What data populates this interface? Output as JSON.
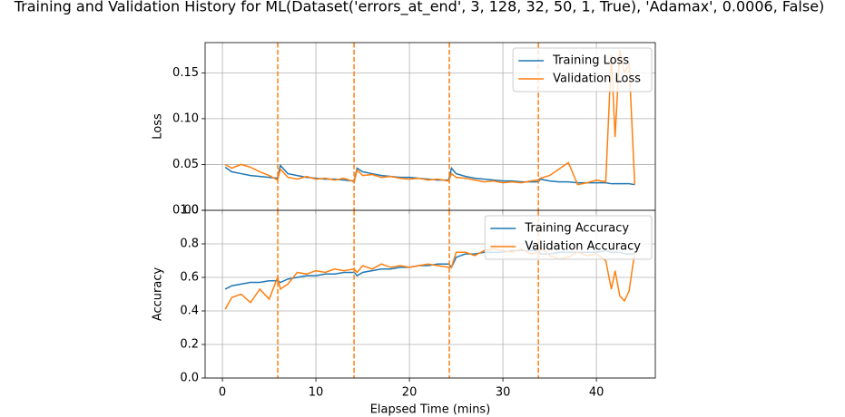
{
  "title": "Training and Validation History for ML(Dataset('errors_at_end', 3, 128, 32, 50, 1, True), 'Adamax', 0.0006, False)",
  "chart_data": [
    {
      "type": "line",
      "ylabel": "Loss",
      "x": [
        0.3,
        1,
        2,
        3,
        4,
        5,
        5.9,
        6.2,
        7,
        8,
        9,
        10,
        11,
        12,
        13,
        14.1,
        14.4,
        15,
        16,
        17,
        18,
        19,
        20,
        21,
        22,
        23,
        24.2,
        24.5,
        25,
        26,
        27,
        28,
        29,
        30,
        31,
        32,
        33,
        33.8,
        34,
        35,
        36,
        37,
        38,
        39,
        40,
        41,
        41.6,
        42,
        42.5,
        43,
        43.5,
        44.1
      ],
      "series": [
        {
          "name": "Training Loss",
          "color": "#1f77b4",
          "values": [
            0.047,
            0.042,
            0.04,
            0.038,
            0.037,
            0.036,
            0.035,
            0.049,
            0.04,
            0.038,
            0.036,
            0.035,
            0.034,
            0.034,
            0.033,
            0.032,
            0.046,
            0.042,
            0.04,
            0.038,
            0.037,
            0.036,
            0.036,
            0.035,
            0.034,
            0.033,
            0.033,
            0.046,
            0.04,
            0.037,
            0.035,
            0.034,
            0.033,
            0.032,
            0.032,
            0.031,
            0.031,
            0.031,
            0.034,
            0.032,
            0.031,
            0.031,
            0.03,
            0.03,
            0.03,
            0.03,
            0.029,
            0.029,
            0.029,
            0.029,
            0.029,
            0.028
          ]
        },
        {
          "name": "Validation Loss",
          "color": "#ff7f0e",
          "values": [
            0.05,
            0.046,
            0.05,
            0.047,
            0.042,
            0.038,
            0.033,
            0.045,
            0.036,
            0.034,
            0.037,
            0.034,
            0.035,
            0.033,
            0.035,
            0.031,
            0.044,
            0.038,
            0.039,
            0.036,
            0.037,
            0.035,
            0.034,
            0.035,
            0.033,
            0.034,
            0.032,
            0.04,
            0.036,
            0.035,
            0.033,
            0.031,
            0.032,
            0.03,
            0.031,
            0.03,
            0.032,
            0.033,
            0.035,
            0.038,
            0.045,
            0.052,
            0.028,
            0.03,
            0.033,
            0.031,
            0.17,
            0.08,
            0.175,
            0.15,
            0.16,
            0.028
          ]
        }
      ],
      "vlines": [
        5.92,
        14.08,
        24.27,
        33.79
      ],
      "vline_color": "#ff7f0e",
      "xlim": [
        -1.85,
        46.3
      ],
      "xticks": [
        0,
        10,
        20,
        30,
        40
      ],
      "ylim": [
        0,
        0.183
      ],
      "yticks": [
        {
          "value": 0,
          "label": "0.00"
        },
        0.05,
        {
          "value": 0.1,
          "label": "0.10"
        },
        0.15
      ],
      "grid": true,
      "legend": "upper right"
    },
    {
      "type": "line",
      "ylabel": "Accuracy",
      "xlabel": "Elapsed Time (mins)",
      "x": [
        0.3,
        1,
        2,
        3,
        4,
        5,
        5.9,
        6.2,
        7,
        8,
        9,
        10,
        11,
        12,
        13,
        14.1,
        14.4,
        15,
        16,
        17,
        18,
        19,
        20,
        21,
        22,
        23,
        24.2,
        24.5,
        25,
        26,
        27,
        28,
        29,
        30,
        31,
        32,
        33,
        33.8,
        34,
        35,
        36,
        37,
        38,
        39,
        40,
        41,
        41.6,
        42,
        42.5,
        43,
        43.5,
        44.1
      ],
      "series": [
        {
          "name": "Training Accuracy",
          "color": "#1f77b4",
          "values": [
            0.53,
            0.55,
            0.56,
            0.57,
            0.57,
            0.58,
            0.58,
            0.57,
            0.59,
            0.6,
            0.61,
            0.61,
            0.62,
            0.62,
            0.63,
            0.63,
            0.61,
            0.63,
            0.64,
            0.65,
            0.65,
            0.66,
            0.66,
            0.67,
            0.67,
            0.68,
            0.68,
            0.66,
            0.72,
            0.74,
            0.74,
            0.75,
            0.75,
            0.75,
            0.76,
            0.76,
            0.76,
            0.76,
            0.74,
            0.74,
            0.75,
            0.75,
            0.75,
            0.75,
            0.75,
            0.76,
            0.75,
            0.75,
            0.75,
            0.74,
            0.74,
            0.74
          ]
        },
        {
          "name": "Validation Accuracy",
          "color": "#ff7f0e",
          "values": [
            0.41,
            0.48,
            0.5,
            0.45,
            0.53,
            0.47,
            0.6,
            0.53,
            0.56,
            0.63,
            0.62,
            0.64,
            0.63,
            0.65,
            0.64,
            0.65,
            0.63,
            0.67,
            0.65,
            0.68,
            0.66,
            0.67,
            0.66,
            0.67,
            0.68,
            0.67,
            0.66,
            0.66,
            0.75,
            0.75,
            0.73,
            0.76,
            0.77,
            0.76,
            0.75,
            0.77,
            0.74,
            0.75,
            0.78,
            0.73,
            0.71,
            0.72,
            0.75,
            0.73,
            0.74,
            0.7,
            0.53,
            0.64,
            0.49,
            0.46,
            0.52,
            0.75
          ]
        }
      ],
      "vlines": [
        5.92,
        14.08,
        24.27,
        33.79
      ],
      "vline_color": "#ff7f0e",
      "xlim": [
        -1.85,
        46.3
      ],
      "xticks": [
        0,
        10,
        20,
        30,
        40
      ],
      "ylim": [
        0,
        1
      ],
      "yticks": [
        {
          "value": 0,
          "label": "0.0"
        },
        0.2,
        0.4,
        0.6,
        0.8,
        {
          "value": 1,
          "label": "1.0"
        }
      ],
      "grid": true,
      "legend": "upper right"
    }
  ]
}
